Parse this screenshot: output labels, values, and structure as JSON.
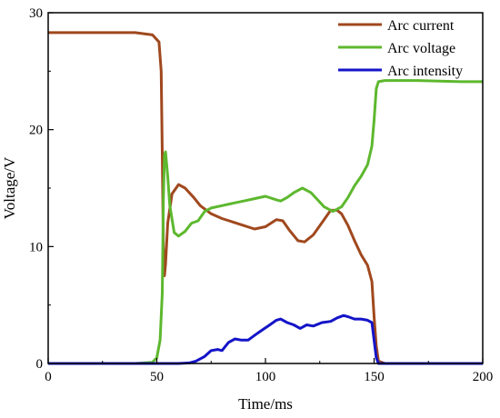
{
  "chart_data": {
    "type": "line",
    "xlabel": "Time/ms",
    "ylabel": "Voltage/V",
    "xlim": [
      0,
      200
    ],
    "ylim": [
      0,
      30
    ],
    "xticks": [
      0,
      50,
      100,
      150,
      200
    ],
    "yticks": [
      0,
      10,
      20,
      30
    ],
    "grid": false,
    "legend_position": "top-right",
    "series": [
      {
        "name": "Arc current",
        "color": "#a0481e",
        "points": [
          [
            0,
            28.3
          ],
          [
            20,
            28.3
          ],
          [
            40,
            28.3
          ],
          [
            48,
            28.1
          ],
          [
            51,
            27.5
          ],
          [
            52,
            25
          ],
          [
            52.5,
            18
          ],
          [
            53,
            10
          ],
          [
            53.5,
            7.5
          ],
          [
            54,
            8.5
          ],
          [
            55,
            12
          ],
          [
            57,
            14.5
          ],
          [
            60,
            15.3
          ],
          [
            63,
            15
          ],
          [
            67,
            14.2
          ],
          [
            70,
            13.5
          ],
          [
            75,
            12.8
          ],
          [
            80,
            12.4
          ],
          [
            85,
            12.1
          ],
          [
            90,
            11.8
          ],
          [
            95,
            11.5
          ],
          [
            100,
            11.7
          ],
          [
            105,
            12.3
          ],
          [
            108,
            12.2
          ],
          [
            111,
            11.4
          ],
          [
            115,
            10.5
          ],
          [
            118,
            10.4
          ],
          [
            122,
            11
          ],
          [
            127,
            12.3
          ],
          [
            130,
            13.1
          ],
          [
            133,
            13.1
          ],
          [
            135,
            12.8
          ],
          [
            138,
            11.8
          ],
          [
            141,
            10.5
          ],
          [
            144,
            9.3
          ],
          [
            147,
            8.4
          ],
          [
            149,
            7
          ],
          [
            150,
            4
          ],
          [
            151,
            1.5
          ],
          [
            152,
            0.2
          ],
          [
            155,
            0
          ],
          [
            200,
            0
          ]
        ]
      },
      {
        "name": "Arc voltage",
        "color": "#5db82e",
        "points": [
          [
            0,
            0
          ],
          [
            40,
            0
          ],
          [
            48,
            0.1
          ],
          [
            50,
            0.5
          ],
          [
            51.5,
            2
          ],
          [
            52.5,
            6
          ],
          [
            53,
            14
          ],
          [
            53.5,
            17.8
          ],
          [
            54,
            18.1
          ],
          [
            55,
            16
          ],
          [
            56,
            13.5
          ],
          [
            58,
            11.2
          ],
          [
            60,
            10.9
          ],
          [
            63,
            11.3
          ],
          [
            66,
            12
          ],
          [
            69,
            12.2
          ],
          [
            72,
            13
          ],
          [
            75,
            13.3
          ],
          [
            80,
            13.5
          ],
          [
            85,
            13.7
          ],
          [
            90,
            13.9
          ],
          [
            95,
            14.1
          ],
          [
            100,
            14.3
          ],
          [
            105,
            14
          ],
          [
            107,
            13.9
          ],
          [
            110,
            14.2
          ],
          [
            113,
            14.6
          ],
          [
            117,
            15
          ],
          [
            121,
            14.6
          ],
          [
            124,
            14
          ],
          [
            127,
            13.4
          ],
          [
            131,
            13
          ],
          [
            135,
            13.4
          ],
          [
            138,
            14.2
          ],
          [
            141,
            15.2
          ],
          [
            144,
            16
          ],
          [
            147,
            17
          ],
          [
            149,
            18.6
          ],
          [
            150,
            20.8
          ],
          [
            151,
            23.5
          ],
          [
            152,
            24.1
          ],
          [
            155,
            24.2
          ],
          [
            170,
            24.2
          ],
          [
            190,
            24.1
          ],
          [
            200,
            24.1
          ]
        ]
      },
      {
        "name": "Arc intensity",
        "color": "#1414c8",
        "points": [
          [
            0,
            0
          ],
          [
            60,
            0
          ],
          [
            65,
            0.05
          ],
          [
            68,
            0.2
          ],
          [
            72,
            0.6
          ],
          [
            75,
            1.1
          ],
          [
            78,
            1.2
          ],
          [
            80,
            1.1
          ],
          [
            83,
            1.8
          ],
          [
            86,
            2.1
          ],
          [
            89,
            2
          ],
          [
            92,
            2
          ],
          [
            95,
            2.4
          ],
          [
            98,
            2.8
          ],
          [
            102,
            3.3
          ],
          [
            105,
            3.7
          ],
          [
            107,
            3.8
          ],
          [
            110,
            3.5
          ],
          [
            113,
            3.3
          ],
          [
            116,
            3
          ],
          [
            119,
            3.3
          ],
          [
            122,
            3.2
          ],
          [
            126,
            3.5
          ],
          [
            130,
            3.6
          ],
          [
            133,
            3.9
          ],
          [
            136,
            4.1
          ],
          [
            138,
            4
          ],
          [
            141,
            3.8
          ],
          [
            144,
            3.8
          ],
          [
            147,
            3.7
          ],
          [
            149,
            3.5
          ],
          [
            150,
            2
          ],
          [
            151,
            0.5
          ],
          [
            152,
            0
          ],
          [
            200,
            0
          ]
        ]
      }
    ]
  }
}
